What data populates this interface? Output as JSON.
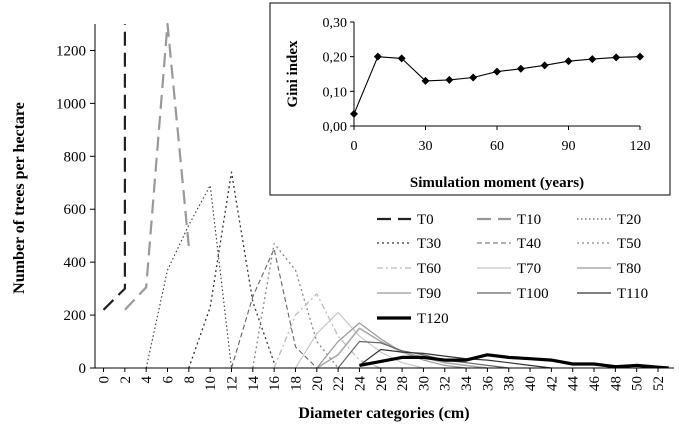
{
  "chart_data": [
    {
      "type": "line",
      "xlabel": "Diameter categories (cm)",
      "ylabel": "Number of trees per hectare",
      "ylim": [
        0,
        1300
      ],
      "xlim": [
        -0.8,
        53.5
      ],
      "y_ticks": [
        0,
        200,
        400,
        600,
        800,
        1000,
        1200
      ],
      "x_ticks": [
        0,
        2,
        4,
        6,
        8,
        10,
        12,
        14,
        16,
        18,
        20,
        22,
        24,
        26,
        28,
        30,
        32,
        34,
        36,
        38,
        40,
        42,
        44,
        46,
        48,
        50,
        52
      ],
      "legend_position": "middle-right",
      "series": [
        {
          "name": "T0",
          "color": "#222222",
          "dash": "dash-long",
          "width": 2.2,
          "points": [
            [
              0,
              220
            ],
            [
              2,
              300
            ],
            [
              2,
              1300
            ]
          ]
        },
        {
          "name": "T10",
          "color": "#999999",
          "dash": "dash-long",
          "width": 2.2,
          "points": [
            [
              2,
              220
            ],
            [
              4,
              305
            ],
            [
              6,
              1300
            ],
            [
              8,
              460
            ]
          ]
        },
        {
          "name": "T20",
          "color": "#333333",
          "dash": "dot",
          "width": 1.1,
          "points": [
            [
              4,
              0
            ],
            [
              6,
              370
            ],
            [
              8,
              540
            ],
            [
              10,
              690
            ],
            [
              12,
              0
            ]
          ]
        },
        {
          "name": "T30",
          "color": "#333333",
          "dash": "dot-wide",
          "width": 1.3,
          "points": [
            [
              8,
              0
            ],
            [
              10,
              230
            ],
            [
              12,
              740
            ],
            [
              14,
              250
            ],
            [
              16,
              20
            ]
          ]
        },
        {
          "name": "T40",
          "color": "#666666",
          "dash": "dash-short",
          "width": 1.1,
          "points": [
            [
              12,
              0
            ],
            [
              14,
              270
            ],
            [
              16,
              450
            ],
            [
              18,
              80
            ],
            [
              20,
              0
            ]
          ]
        },
        {
          "name": "T50",
          "color": "#888888",
          "dash": "dot-wide",
          "width": 1.3,
          "points": [
            [
              14,
              0
            ],
            [
              16,
              470
            ],
            [
              18,
              370
            ],
            [
              20,
              100
            ],
            [
              22,
              0
            ]
          ]
        },
        {
          "name": "T60",
          "color": "#bbbbbb",
          "dash": "dash-dot",
          "width": 1.3,
          "points": [
            [
              16,
              0
            ],
            [
              18,
              200
            ],
            [
              20,
              280
            ],
            [
              22,
              120
            ],
            [
              24,
              30
            ],
            [
              26,
              0
            ]
          ]
        },
        {
          "name": "T70",
          "color": "#c8c8c8",
          "dash": "solid",
          "width": 1.2,
          "points": [
            [
              18,
              0
            ],
            [
              20,
              130
            ],
            [
              22,
              210
            ],
            [
              24,
              120
            ],
            [
              26,
              60
            ],
            [
              28,
              20
            ],
            [
              30,
              0
            ]
          ]
        },
        {
          "name": "T80",
          "color": "#999999",
          "dash": "solid",
          "width": 1.2,
          "points": [
            [
              20,
              0
            ],
            [
              22,
              100
            ],
            [
              24,
              170
            ],
            [
              26,
              110
            ],
            [
              28,
              60
            ],
            [
              30,
              30
            ],
            [
              32,
              10
            ],
            [
              34,
              0
            ]
          ]
        },
        {
          "name": "T90",
          "color": "#aaaaaa",
          "dash": "solid",
          "width": 1.6,
          "points": [
            [
              20,
              0
            ],
            [
              22,
              50
            ],
            [
              24,
              150
            ],
            [
              26,
              100
            ],
            [
              28,
              60
            ],
            [
              30,
              40
            ],
            [
              32,
              20
            ],
            [
              34,
              10
            ],
            [
              36,
              0
            ]
          ]
        },
        {
          "name": "T100",
          "color": "#666666",
          "dash": "solid",
          "width": 1.2,
          "points": [
            [
              22,
              0
            ],
            [
              24,
              100
            ],
            [
              26,
              95
            ],
            [
              28,
              65
            ],
            [
              30,
              50
            ],
            [
              32,
              30
            ],
            [
              34,
              20
            ],
            [
              36,
              10
            ],
            [
              38,
              0
            ]
          ]
        },
        {
          "name": "T110",
          "color": "#333333",
          "dash": "solid",
          "width": 1.2,
          "points": [
            [
              24,
              10
            ],
            [
              26,
              70
            ],
            [
              28,
              60
            ],
            [
              30,
              55
            ],
            [
              32,
              45
            ],
            [
              34,
              35
            ],
            [
              36,
              30
            ],
            [
              38,
              20
            ],
            [
              40,
              10
            ],
            [
              42,
              0
            ]
          ]
        },
        {
          "name": "T120",
          "color": "#000000",
          "dash": "solid",
          "width": 3.2,
          "points": [
            [
              24,
              10
            ],
            [
              26,
              25
            ],
            [
              28,
              40
            ],
            [
              30,
              40
            ],
            [
              32,
              30
            ],
            [
              34,
              30
            ],
            [
              36,
              50
            ],
            [
              38,
              40
            ],
            [
              40,
              35
            ],
            [
              42,
              30
            ],
            [
              44,
              15
            ],
            [
              46,
              15
            ],
            [
              48,
              5
            ],
            [
              50,
              10
            ],
            [
              52,
              3
            ],
            [
              53,
              0
            ]
          ]
        }
      ]
    },
    {
      "type": "line",
      "xlabel": "Simulation moment (years)",
      "ylabel": "Gini index",
      "ylim": [
        0,
        0.3
      ],
      "xlim": [
        0,
        120
      ],
      "y_ticks": [
        "0,00",
        "0,10",
        "0,20",
        "0,30"
      ],
      "y_tick_values": [
        0,
        0.1,
        0.2,
        0.3
      ],
      "x_ticks": [
        0,
        30,
        60,
        90,
        120
      ],
      "marker": "diamond",
      "series": [
        {
          "name": "",
          "points": [
            [
              0,
              0.035
            ],
            [
              10,
              0.2
            ],
            [
              20,
              0.195
            ],
            [
              30,
              0.13
            ],
            [
              40,
              0.133
            ],
            [
              50,
              0.14
            ],
            [
              60,
              0.157
            ],
            [
              70,
              0.165
            ],
            [
              80,
              0.175
            ],
            [
              90,
              0.187
            ],
            [
              100,
              0.193
            ],
            [
              110,
              0.198
            ],
            [
              120,
              0.2
            ]
          ]
        }
      ]
    }
  ]
}
